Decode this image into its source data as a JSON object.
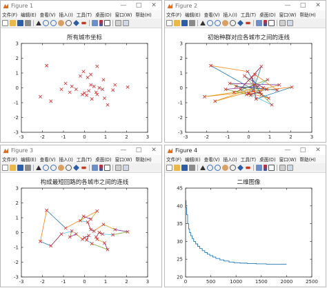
{
  "menu": [
    "文件(F)",
    "编辑(E)",
    "查看(V)",
    "插入(I)",
    "工具(T)",
    "桌面(D)",
    "窗口(W)",
    "帮助(H)"
  ],
  "windows": [
    {
      "title": "Figure 1"
    },
    {
      "title": "Figure 2"
    },
    {
      "title": "Figure 3"
    },
    {
      "title": "Figure 4"
    }
  ],
  "colors": {
    "marker": "#d62728",
    "curve": "#1f77b4",
    "palette": [
      "#1f77b4",
      "#ff7f0e",
      "#d4a017",
      "#7e2f8e",
      "#77ac30",
      "#4dbeee",
      "#a2142f"
    ]
  },
  "chart_data": [
    {
      "type": "scatter",
      "title": "所有城市坐标",
      "xlim": [
        -3,
        3
      ],
      "ylim": [
        -3,
        3
      ],
      "xticks": [
        "-3",
        "-2",
        "-1",
        "0",
        "1",
        "2",
        "3"
      ],
      "yticks": [
        "-3",
        "-2",
        "-1",
        "0",
        "1",
        "2",
        "3"
      ],
      "marker": "x",
      "points": [
        [
          -1.8,
          1.5
        ],
        [
          -2.1,
          -0.6
        ],
        [
          -1.6,
          -0.9
        ],
        [
          -0.9,
          0.3
        ],
        [
          -0.7,
          -0.3
        ],
        [
          -0.6,
          0.1
        ],
        [
          -0.2,
          0.8
        ],
        [
          -0.05,
          1.1
        ],
        [
          0.15,
          0.7
        ],
        [
          0.3,
          0.9
        ],
        [
          -0.4,
          -0.1
        ],
        [
          -0.1,
          -0.45
        ],
        [
          0.0,
          -0.35
        ],
        [
          0.2,
          -0.2
        ],
        [
          0.1,
          -0.5
        ],
        [
          0.35,
          -0.75
        ],
        [
          0.3,
          0.2
        ],
        [
          0.45,
          0.1
        ],
        [
          0.55,
          -0.3
        ],
        [
          0.6,
          -0.45
        ],
        [
          0.7,
          0.0
        ],
        [
          0.85,
          -0.1
        ],
        [
          0.6,
          1.45
        ],
        [
          0.9,
          0.55
        ],
        [
          0.95,
          -0.7
        ],
        [
          1.1,
          -1.15
        ],
        [
          1.35,
          -0.15
        ],
        [
          1.45,
          0.2
        ],
        [
          2.05,
          0.05
        ],
        [
          -1.1,
          -0.1
        ]
      ]
    },
    {
      "type": "line",
      "title": "初始种群对应各城市之间的连线",
      "xlim": [
        -3,
        3
      ],
      "ylim": [
        -3,
        3
      ],
      "xticks": [
        "-3",
        "-2",
        "-1",
        "0",
        "1",
        "2",
        "3"
      ],
      "yticks": [
        "-3",
        "-2",
        "-1",
        "0",
        "1",
        "2",
        "3"
      ],
      "marker": "x",
      "points": [
        [
          -1.8,
          1.5
        ],
        [
          -2.1,
          -0.6
        ],
        [
          -1.6,
          -0.9
        ],
        [
          -0.9,
          0.3
        ],
        [
          -0.7,
          -0.3
        ],
        [
          -0.6,
          0.1
        ],
        [
          -0.2,
          0.8
        ],
        [
          -0.05,
          1.1
        ],
        [
          0.15,
          0.7
        ],
        [
          0.3,
          0.9
        ],
        [
          -0.4,
          -0.1
        ],
        [
          -0.1,
          -0.45
        ],
        [
          0.0,
          -0.35
        ],
        [
          0.2,
          -0.2
        ],
        [
          0.1,
          -0.5
        ],
        [
          0.35,
          -0.75
        ],
        [
          0.3,
          0.2
        ],
        [
          0.45,
          0.1
        ],
        [
          0.55,
          -0.3
        ],
        [
          0.6,
          -0.45
        ],
        [
          0.7,
          0.0
        ],
        [
          0.85,
          -0.1
        ],
        [
          0.6,
          1.45
        ],
        [
          0.9,
          0.55
        ],
        [
          0.95,
          -0.7
        ],
        [
          1.1,
          -1.15
        ],
        [
          1.35,
          -0.15
        ],
        [
          1.45,
          0.2
        ],
        [
          2.05,
          0.05
        ],
        [
          -1.1,
          -0.1
        ]
      ],
      "order": [
        0,
        24,
        12,
        27,
        3,
        19,
        8,
        15,
        28,
        1,
        20,
        6,
        25,
        10,
        22,
        13,
        2,
        17,
        29,
        14,
        21,
        5,
        26,
        9,
        16,
        4,
        23,
        11,
        18,
        7
      ]
    },
    {
      "type": "line",
      "title": "构成最短回路的各城市之间的连线",
      "xlim": [
        -3,
        3
      ],
      "ylim": [
        -3,
        3
      ],
      "xticks": [
        "-3",
        "-2",
        "-1",
        "0",
        "1",
        "2",
        "3"
      ],
      "yticks": [
        "-3",
        "-2",
        "-1",
        "0",
        "1",
        "2",
        "3"
      ],
      "marker": "x",
      "points": [
        [
          -1.8,
          1.5
        ],
        [
          -2.1,
          -0.6
        ],
        [
          -1.6,
          -0.9
        ],
        [
          -0.9,
          0.3
        ],
        [
          -0.7,
          -0.3
        ],
        [
          -0.6,
          0.1
        ],
        [
          -0.2,
          0.8
        ],
        [
          -0.05,
          1.1
        ],
        [
          0.15,
          0.7
        ],
        [
          0.3,
          0.9
        ],
        [
          -0.4,
          -0.1
        ],
        [
          -0.1,
          -0.45
        ],
        [
          0.0,
          -0.35
        ],
        [
          0.2,
          -0.2
        ],
        [
          0.1,
          -0.5
        ],
        [
          0.35,
          -0.75
        ],
        [
          0.3,
          0.2
        ],
        [
          0.45,
          0.1
        ],
        [
          0.55,
          -0.3
        ],
        [
          0.6,
          -0.45
        ],
        [
          0.7,
          0.0
        ],
        [
          0.85,
          -0.1
        ],
        [
          0.6,
          1.45
        ],
        [
          0.9,
          0.55
        ],
        [
          0.95,
          -0.7
        ],
        [
          1.1,
          -1.15
        ],
        [
          1.35,
          -0.15
        ],
        [
          1.45,
          0.2
        ],
        [
          2.05,
          0.05
        ],
        [
          -1.1,
          -0.1
        ]
      ],
      "order": [
        0,
        3,
        22,
        9,
        7,
        6,
        8,
        16,
        17,
        23,
        27,
        28,
        26,
        21,
        20,
        18,
        19,
        24,
        25,
        15,
        14,
        13,
        12,
        11,
        10,
        4,
        5,
        29,
        2,
        1
      ]
    },
    {
      "type": "line",
      "title": "二维图像",
      "xlim": [
        0,
        2500
      ],
      "ylim": [
        20,
        45
      ],
      "xticks": [
        "0",
        "500",
        "1000",
        "1500",
        "2000",
        "2500"
      ],
      "yticks": [
        "20",
        "25",
        "30",
        "35",
        "40",
        "45"
      ],
      "x": [
        0,
        10,
        20,
        40,
        60,
        80,
        100,
        130,
        160,
        200,
        240,
        280,
        330,
        380,
        430,
        480,
        540,
        600,
        680,
        760,
        860,
        960,
        1080,
        1220,
        1400,
        1600,
        1800,
        2000
      ],
      "y": [
        41.5,
        39.5,
        37.5,
        35.0,
        33.5,
        32.5,
        31.6,
        30.8,
        30.0,
        29.3,
        28.6,
        28.0,
        27.4,
        26.9,
        26.4,
        26.0,
        25.6,
        25.2,
        24.8,
        24.5,
        24.2,
        24.0,
        23.9,
        23.8,
        23.7,
        23.6,
        23.6,
        23.6
      ]
    }
  ]
}
